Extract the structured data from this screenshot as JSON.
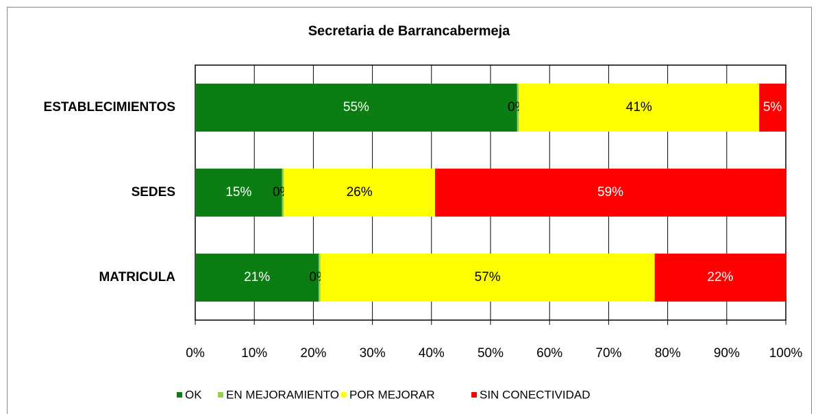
{
  "chart_data": {
    "type": "stacked_barh",
    "title": "Secretaria de Barrancabermeja",
    "categories": [
      "ESTABLECIMIENTOS",
      "SEDES",
      "MATRICULA"
    ],
    "series": [
      {
        "name": "OK",
        "color": "#0b7d12",
        "values": [
          54.5,
          14.7,
          20.9
        ],
        "value_labels": [
          "55%",
          "15%",
          "21%"
        ]
      },
      {
        "name": "EN MEJORAMIENTO",
        "color": "#92d050",
        "values": [
          0.3,
          0.3,
          0.3
        ],
        "value_labels": [
          "0%",
          "0%",
          "0%"
        ]
      },
      {
        "name": "POR MEJORAR",
        "color": "#ffff00",
        "values": [
          40.7,
          25.6,
          56.6
        ],
        "value_labels": [
          "41%",
          "26%",
          "57%"
        ]
      },
      {
        "name": "SIN CONECTIVIDAD",
        "color": "#ff0000",
        "values": [
          4.5,
          59.4,
          22.2
        ],
        "value_labels": [
          "5%",
          "59%",
          "22%"
        ]
      }
    ],
    "xlim": [
      0,
      100
    ],
    "xticks": [
      {
        "value": 0,
        "label": "0%"
      },
      {
        "value": 10,
        "label": "10%"
      },
      {
        "value": 20,
        "label": "20%"
      },
      {
        "value": 30,
        "label": "30%"
      },
      {
        "value": 40,
        "label": "40%"
      },
      {
        "value": 50,
        "label": "50%"
      },
      {
        "value": 60,
        "label": "60%"
      },
      {
        "value": 70,
        "label": "70%"
      },
      {
        "value": 80,
        "label": "80%"
      },
      {
        "value": 90,
        "label": "90%"
      },
      {
        "value": 100,
        "label": "100%"
      }
    ],
    "grid": true,
    "legend": "bottom"
  }
}
